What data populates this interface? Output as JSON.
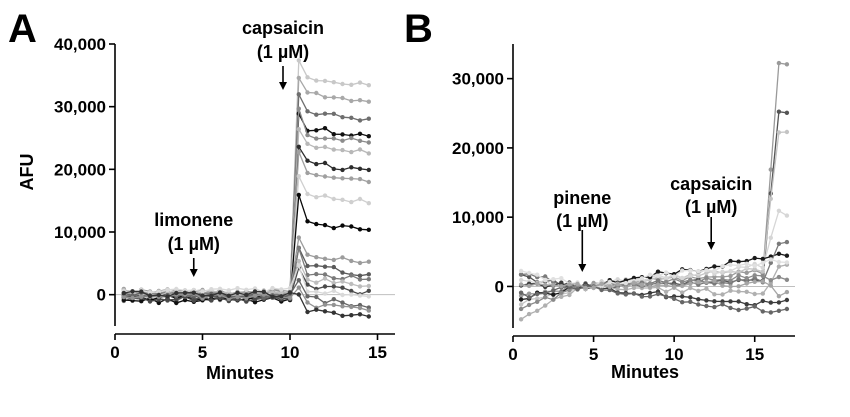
{
  "chart_data": [
    {
      "type": "line",
      "panel_label": "A",
      "xlabel": "Minutes",
      "ylabel": "AFU",
      "xlim": [
        0,
        16
      ],
      "ylim": [
        -5000,
        40000
      ],
      "x_ticks": [
        0,
        5,
        10,
        15
      ],
      "y_ticks": [
        0,
        10000,
        20000,
        30000,
        40000
      ],
      "x_tick_labels": [
        "0",
        "5",
        "10",
        "15"
      ],
      "y_tick_labels": [
        "0",
        "10,000",
        "20,000",
        "30,000",
        "40,000"
      ],
      "zero_line": true,
      "grid": false,
      "annotations": [
        {
          "line1": "limonene",
          "line2": "(1 µM)",
          "x": 4.5
        },
        {
          "line1": "capsaicin",
          "line2": "(1 µM)",
          "x": 9.6
        }
      ],
      "x": [
        0.5,
        1,
        1.5,
        2,
        2.5,
        3,
        3.5,
        4,
        4.5,
        5,
        5.5,
        6,
        6.5,
        7,
        7.5,
        8,
        8.5,
        9,
        9.5,
        10,
        10.5,
        11,
        11.5,
        12,
        12.5,
        13,
        13.5,
        14,
        14.5
      ],
      "series": [
        {
          "color": "#c8c8c8",
          "baseline": 0,
          "final": 34500
        },
        {
          "color": "#a8a8a8",
          "baseline": 300,
          "final": 32000
        },
        {
          "color": "#6e6e6e",
          "baseline": -600,
          "final": 29000
        },
        {
          "color": "#101010",
          "baseline": -900,
          "final": 26500
        },
        {
          "color": "#8c8c8c",
          "baseline": 400,
          "final": 25500
        },
        {
          "color": "#b8b8b8",
          "baseline": 100,
          "final": 24000
        },
        {
          "color": "#2c2c2c",
          "baseline": -300,
          "final": 21000
        },
        {
          "color": "#a0a0a0",
          "baseline": 200,
          "final": 19500
        },
        {
          "color": "#cfcfcf",
          "baseline": -200,
          "final": 16000
        },
        {
          "color": "#080808",
          "baseline": -500,
          "final": 11500
        },
        {
          "color": "#9c9c9c",
          "baseline": 500,
          "final": 6500
        },
        {
          "color": "#5a5a5a",
          "baseline": -400,
          "final": 4500
        },
        {
          "color": "#7a7a7a",
          "baseline": 0,
          "final": 3500
        },
        {
          "color": "#bdbdbd",
          "baseline": 300,
          "final": 2500
        },
        {
          "color": "#4a4a4a",
          "baseline": -700,
          "final": 1500
        },
        {
          "color": "#d9d9d9",
          "baseline": 600,
          "final": 800
        },
        {
          "color": "#666666",
          "baseline": -100,
          "final": -600
        },
        {
          "color": "#939393",
          "baseline": -300,
          "final": -1500
        },
        {
          "color": "#333333",
          "baseline": 100,
          "final": -2500
        }
      ]
    },
    {
      "type": "line",
      "panel_label": "B",
      "xlabel": "Minutes",
      "ylabel": "",
      "xlim": [
        0,
        17.5
      ],
      "ylim": [
        -6000,
        35000
      ],
      "x_ticks": [
        0,
        5,
        10,
        15
      ],
      "y_ticks": [
        0,
        10000,
        20000,
        30000
      ],
      "x_tick_labels": [
        "0",
        "5",
        "10",
        "15"
      ],
      "y_tick_labels": [
        "0",
        "10,000",
        "20,000",
        "30,000"
      ],
      "zero_line": true,
      "grid": false,
      "annotations": [
        {
          "line1": "pinene",
          "line2": "(1 µM)",
          "x": 4.3
        },
        {
          "line1": "capsaicin",
          "line2": "(1 µM)",
          "x": 12.3
        }
      ],
      "x": [
        0.5,
        1,
        1.5,
        2,
        2.5,
        3,
        3.5,
        4,
        4.5,
        5,
        5.5,
        6,
        6.5,
        7,
        7.5,
        8,
        8.5,
        9,
        9.5,
        10,
        10.5,
        11,
        11.5,
        12,
        12.5,
        13,
        13.5,
        14,
        14.5,
        15,
        15.5,
        16,
        16.5,
        17
      ],
      "series": [
        {
          "color": "#9a9a9a",
          "start": -1000,
          "late": 2000,
          "final": 32000
        },
        {
          "color": "#555555",
          "start": 1500,
          "late": 1000,
          "final": 25000
        },
        {
          "color": "#c4c4c4",
          "start": -2500,
          "late": 2500,
          "final": 22500
        },
        {
          "color": "#d6d6d6",
          "start": 1000,
          "late": 3000,
          "final": 10500
        },
        {
          "color": "#1a1a1a",
          "start": -2000,
          "late": 4000,
          "final": 4500
        },
        {
          "color": "#7a7a7a",
          "start": 2000,
          "late": 1000,
          "final": 6000
        },
        {
          "color": "#b0b0b0",
          "start": -5500,
          "late": -1000,
          "final": 3000
        },
        {
          "color": "#3c3c3c",
          "start": 500,
          "late": -2500,
          "final": -2000
        },
        {
          "color": "#8a8a8a",
          "start": -3500,
          "late": 1500,
          "final": 1000
        },
        {
          "color": "#e0e0e0",
          "start": 2500,
          "late": 3500,
          "final": 3500
        },
        {
          "color": "#666666",
          "start": -1500,
          "late": -3500,
          "final": -3500
        },
        {
          "color": "#a5a5a5",
          "start": 0,
          "late": 500,
          "final": -1000
        }
      ]
    }
  ]
}
